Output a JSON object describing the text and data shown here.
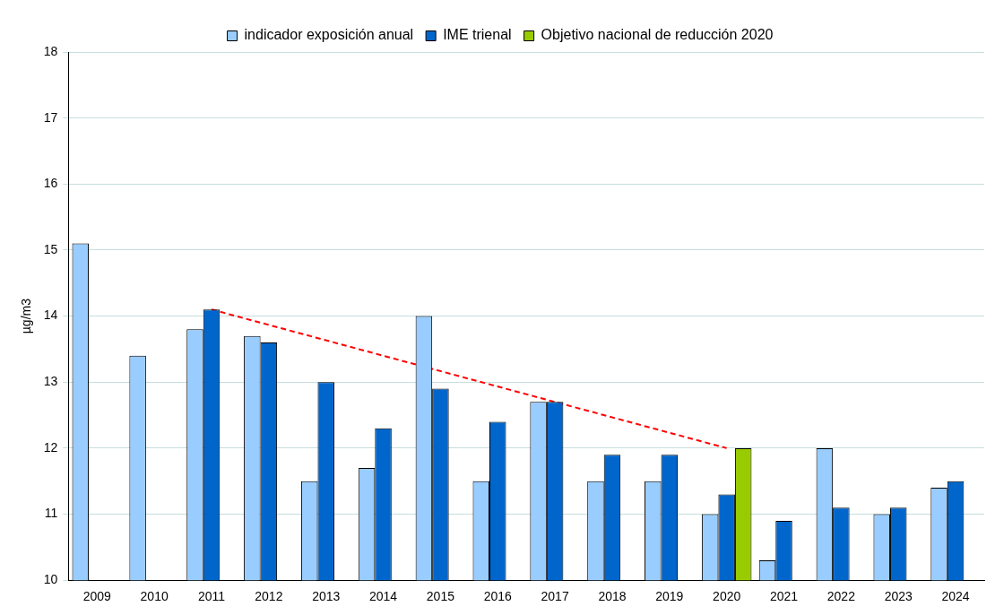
{
  "chart_data": {
    "type": "bar",
    "ylabel": "µg/m3",
    "categories": [
      "2009",
      "2010",
      "2011",
      "2012",
      "2013",
      "2014",
      "2015",
      "2016",
      "2017",
      "2018",
      "2019",
      "2020",
      "2021",
      "2022",
      "2023",
      "2024"
    ],
    "series": [
      {
        "name": "indicador exposición anual",
        "color": "#99ccff",
        "values": [
          15.1,
          13.4,
          13.8,
          13.7,
          11.5,
          11.7,
          14.0,
          11.5,
          12.7,
          11.5,
          11.5,
          11.0,
          10.3,
          12.0,
          11.0,
          11.4
        ]
      },
      {
        "name": "IME trienal",
        "color": "#0066cc",
        "values": [
          null,
          null,
          14.1,
          13.6,
          13.0,
          12.3,
          12.9,
          12.4,
          12.7,
          11.9,
          11.9,
          11.3,
          10.9,
          11.1,
          11.1,
          11.5
        ]
      },
      {
        "name": "Objetivo nacional de reducción 2020",
        "color": "#99cc00",
        "values": [
          null,
          null,
          null,
          null,
          null,
          null,
          null,
          null,
          null,
          null,
          null,
          12.0,
          null,
          null,
          null,
          null
        ]
      },
      {
        "type": "line",
        "color": "#ff0000",
        "line_style": "dashed",
        "values": [
          null,
          null,
          14.1,
          null,
          null,
          null,
          null,
          null,
          null,
          null,
          null,
          12.0,
          null,
          null,
          null,
          null
        ]
      }
    ],
    "ylim": [
      10,
      18
    ],
    "yticks": [
      10,
      11,
      12,
      13,
      14,
      15,
      16,
      17,
      18
    ],
    "grid": "y",
    "legend": "top"
  }
}
